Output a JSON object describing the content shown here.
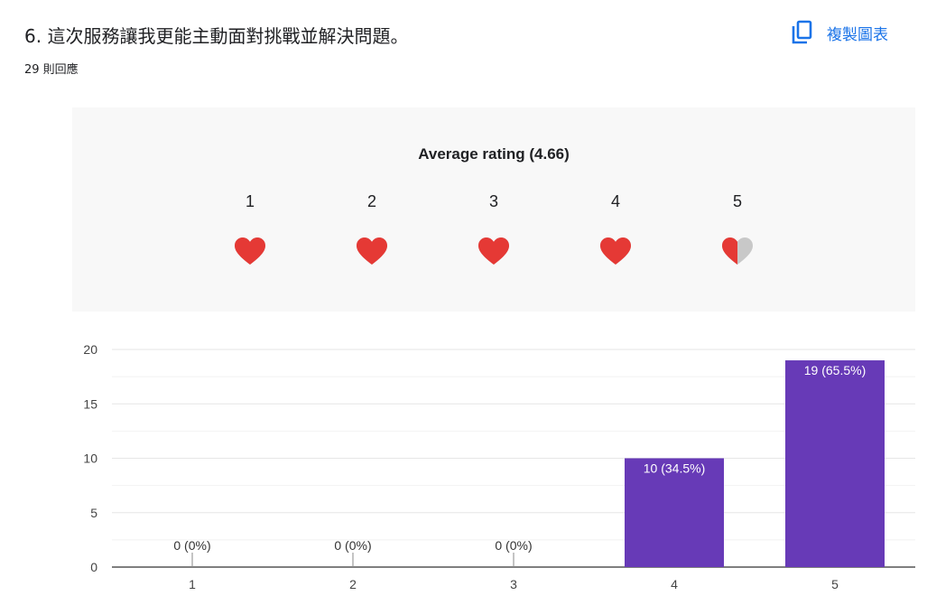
{
  "question": {
    "title": "6. 這次服務讓我更能主動面對挑戰並解決問題。",
    "responses": "29 則回應"
  },
  "copy_chart": {
    "label": "複製圖表",
    "icon": "copy-icon",
    "color": "#1a73e8"
  },
  "rating_summary": {
    "title": "Average rating (4.66)",
    "average": 4.66,
    "levels": [
      "1",
      "2",
      "3",
      "4",
      "5"
    ],
    "heart_fill": [
      1,
      1,
      1,
      1,
      0.66
    ],
    "heart_color": "#e53935",
    "heart_empty_color": "#c8c8c8"
  },
  "chart_data": {
    "type": "bar",
    "categories": [
      "1",
      "2",
      "3",
      "4",
      "5"
    ],
    "values": [
      0,
      0,
      0,
      10,
      19
    ],
    "labels": [
      "0 (0%)",
      "0 (0%)",
      "0 (0%)",
      "10 (34.5%)",
      "19 (65.5%)"
    ],
    "ylim": [
      0,
      20
    ],
    "yticks": [
      "0",
      "5",
      "10",
      "15",
      "20"
    ],
    "grid": true,
    "bar_color": "#673ab7"
  }
}
